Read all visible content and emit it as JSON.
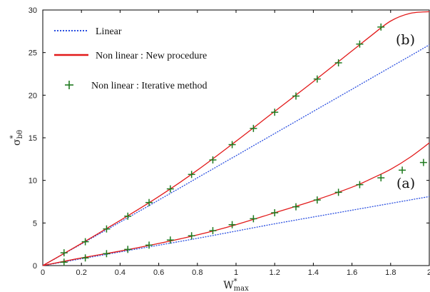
{
  "chart_data": {
    "type": "line",
    "title": "",
    "xlabel": "W*max",
    "ylabel": "σ*bθ",
    "xlim": [
      0,
      2
    ],
    "ylim": [
      0,
      30
    ],
    "x_ticks": [
      "0",
      "0.2",
      "0.4",
      "0.6",
      "0.8",
      "1",
      "1.2",
      "1.4",
      "1.6",
      "1.8",
      "2"
    ],
    "y_ticks": [
      "0",
      "5",
      "10",
      "15",
      "20",
      "25",
      "30"
    ],
    "grid": false,
    "legend_position": "top-left",
    "legend": [
      {
        "label": "Linear",
        "style": "dotted",
        "color": "#2a4fe0"
      },
      {
        "label": "Non linear : New procedure",
        "style": "solid",
        "color": "#e21a1a"
      },
      {
        "label": "Non linear : Iterative method",
        "style": "plus-marker",
        "color": "#1f7a1f"
      }
    ],
    "annotations": [
      "(b)",
      "(a)"
    ],
    "colors": {
      "linear": "#2a4fe0",
      "nonlinear": "#e21a1a",
      "iterative": "#1f7a1f"
    },
    "series": [
      {
        "curve": "b",
        "method": "Linear",
        "kind": "dotted-line",
        "x": [
          0,
          0.4,
          0.8,
          1.2,
          1.6,
          2.0
        ],
        "y": [
          0,
          5.1,
          10.3,
          15.5,
          20.7,
          25.9
        ]
      },
      {
        "curve": "b",
        "method": "Non linear : New procedure",
        "kind": "solid-line",
        "x": [
          0,
          0.2,
          0.4,
          0.6,
          0.8,
          1.0,
          1.2,
          1.4,
          1.6,
          1.7,
          1.8,
          1.9,
          2.0
        ],
        "y": [
          0,
          2.6,
          5.3,
          8.1,
          11.2,
          14.6,
          18.1,
          21.6,
          25.2,
          27.0,
          28.7,
          29.6,
          29.8
        ]
      },
      {
        "curve": "b",
        "method": "Non linear : Iterative method",
        "kind": "markers",
        "x": [
          0.11,
          0.22,
          0.33,
          0.44,
          0.55,
          0.66,
          0.77,
          0.88,
          0.98,
          1.09,
          1.2,
          1.31,
          1.42,
          1.53,
          1.64,
          1.75
        ],
        "y": [
          1.5,
          2.8,
          4.3,
          5.8,
          7.4,
          9.0,
          10.7,
          12.4,
          14.2,
          16.1,
          18.0,
          19.9,
          21.9,
          23.8,
          26.0,
          28.0
        ]
      },
      {
        "curve": "a",
        "method": "Linear",
        "kind": "dotted-line",
        "x": [
          0,
          0.4,
          0.8,
          1.2,
          1.6,
          2.0
        ],
        "y": [
          0,
          1.6,
          3.2,
          4.9,
          6.5,
          8.1
        ]
      },
      {
        "curve": "a",
        "method": "Non linear : New procedure",
        "kind": "solid-line",
        "x": [
          0,
          0.2,
          0.4,
          0.6,
          0.8,
          1.0,
          1.2,
          1.4,
          1.6,
          1.7,
          1.8,
          1.9,
          2.0
        ],
        "y": [
          0,
          0.9,
          1.7,
          2.6,
          3.6,
          4.8,
          6.2,
          7.6,
          9.2,
          10.2,
          11.3,
          12.7,
          14.4
        ]
      },
      {
        "curve": "a",
        "method": "Non linear : Iterative method",
        "kind": "markers",
        "x": [
          0.11,
          0.22,
          0.33,
          0.44,
          0.55,
          0.66,
          0.77,
          0.88,
          0.98,
          1.09,
          1.2,
          1.31,
          1.42,
          1.53,
          1.64,
          1.75,
          1.86,
          1.97
        ],
        "y": [
          0.4,
          0.9,
          1.4,
          1.9,
          2.4,
          3.0,
          3.5,
          4.1,
          4.8,
          5.5,
          6.2,
          6.9,
          7.7,
          8.6,
          9.5,
          10.3,
          11.2,
          12.1
        ]
      }
    ]
  }
}
